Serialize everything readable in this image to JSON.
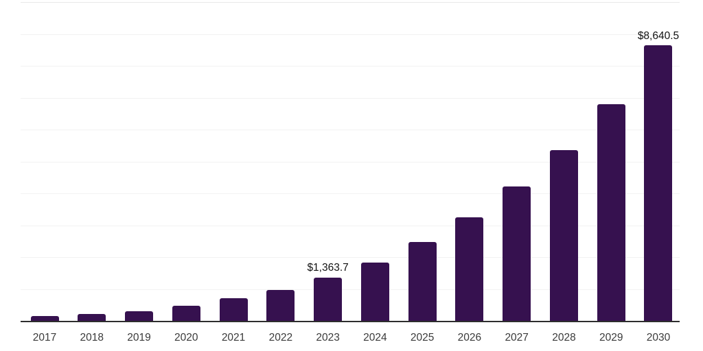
{
  "chart_data": {
    "type": "bar",
    "title": "",
    "xlabel": "",
    "ylabel": "",
    "categories": [
      "2017",
      "2018",
      "2019",
      "2020",
      "2021",
      "2022",
      "2023",
      "2024",
      "2025",
      "2026",
      "2027",
      "2028",
      "2029",
      "2030"
    ],
    "values": [
      150,
      210,
      300,
      480,
      700,
      970,
      1363.7,
      1830,
      2480,
      3240,
      4220,
      5360,
      6800,
      8640.5
    ],
    "data_labels": [
      {
        "index": 6,
        "text": "$1,363.7"
      },
      {
        "index": 13,
        "text": "$8,640.5"
      }
    ],
    "ylim": [
      0,
      10000
    ],
    "gridline_interval": 1000,
    "grid": true,
    "legend": false,
    "colors": {
      "bar": "#36114F",
      "gridline": "#f2f2f2",
      "gridline_top": "#e8e8e8",
      "axis_line": "#2d2d2d",
      "tick_label": "#3a3a3a",
      "data_label": "#111111",
      "background": "#ffffff"
    }
  }
}
